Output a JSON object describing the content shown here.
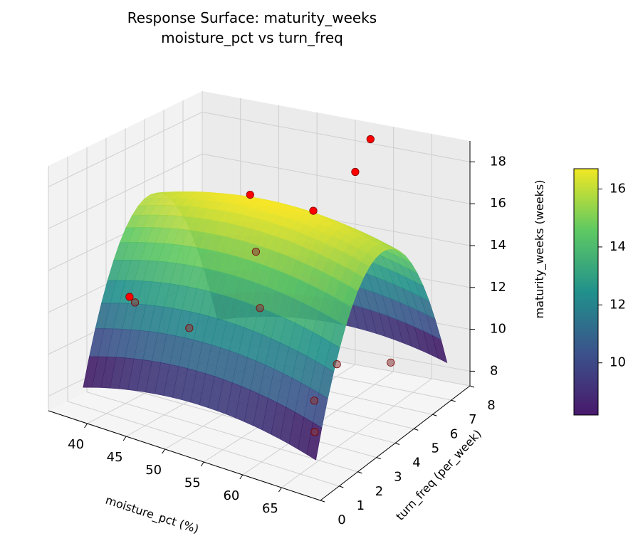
{
  "chart_data": {
    "type": "surface3d",
    "title": "Response Surface: maturity_weeks",
    "subtitle": "moisture_pct vs turn_freq",
    "xlabel": "moisture_pct (%)",
    "ylabel": "turn_freq (per_week)",
    "zlabel": "maturity_weeks (weeks)",
    "x_ticks": [
      40,
      45,
      50,
      55,
      60,
      65
    ],
    "y_ticks": [
      0,
      1,
      2,
      3,
      4,
      5,
      6,
      7,
      8
    ],
    "z_ticks": [
      8,
      10,
      12,
      14,
      16,
      18
    ],
    "xlim": [
      35,
      70
    ],
    "ylim": [
      0,
      8
    ],
    "zlim": [
      7.3,
      19
    ],
    "colormap": "viridis",
    "surface_color_range": [
      8.2,
      16.7
    ],
    "colorbar_ticks": [
      10,
      12,
      14,
      16
    ],
    "surface_function": "z = 8.2 + 0.9*(1 - ((x-52)/15)^2) + 7.6*(1 - ((y-4.5)/3.5)^2)",
    "observations": [
      {
        "x": 38,
        "y": 3.3,
        "z": 11.3
      },
      {
        "x": 41,
        "y": 1.8,
        "z": 12.6
      },
      {
        "x": 45,
        "y": 6.5,
        "z": 15.5
      },
      {
        "x": 47,
        "y": 6.0,
        "z": 13.2
      },
      {
        "x": 47,
        "y": 2.5,
        "z": 11.4
      },
      {
        "x": 50,
        "y": 5.0,
        "z": 11.3
      },
      {
        "x": 52,
        "y": 7.0,
        "z": 15.0
      },
      {
        "x": 55,
        "y": 8.0,
        "z": 16.5
      },
      {
        "x": 57,
        "y": 8.0,
        "z": 18.2
      },
      {
        "x": 60,
        "y": 3.8,
        "z": 8.5
      },
      {
        "x": 60,
        "y": 5.0,
        "z": 9.5
      },
      {
        "x": 62,
        "y": 3.0,
        "z": 7.7
      },
      {
        "x": 67,
        "y": 5.0,
        "z": 10.2
      }
    ]
  }
}
